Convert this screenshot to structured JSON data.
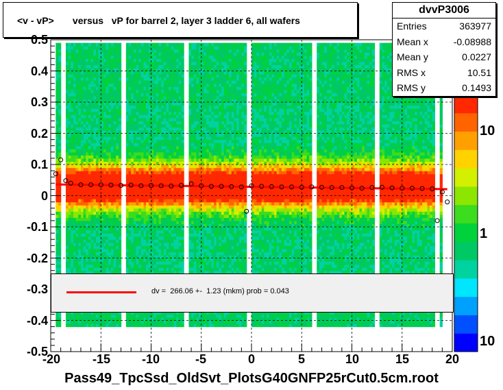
{
  "title": "<v - vP>       versus   vP for barrel 2, layer 3 ladder 6, all wafers",
  "stats": {
    "name": "dvvP3006",
    "rows": [
      {
        "label": "Entries",
        "value": "363977"
      },
      {
        "label": "Mean x",
        "value": "-0.08988"
      },
      {
        "label": "Mean y",
        "value": "0.0227"
      },
      {
        "label": "RMS x",
        "value": "10.51"
      },
      {
        "label": "RMS y",
        "value": "0.1493"
      }
    ]
  },
  "fit": {
    "text": "dv =  266.06 +-  1.23 (mkm) prob = 0.043",
    "color": "#ff0000"
  },
  "x_axis_title": "Pass49_TpcSsd_OldSvt_PlotsG40GNFP25rCut0.5cm.root",
  "chart_data": {
    "type": "heatmap",
    "xlim": [
      -20,
      20
    ],
    "ylim": [
      -0.5,
      0.5
    ],
    "x_ticks": [
      "-20",
      "-15",
      "-10",
      "-5",
      "0",
      "5",
      "10",
      "15",
      "20"
    ],
    "y_ticks": [
      "0.5",
      "0.4",
      "0.3",
      "0.2",
      "0.1",
      "0",
      "-0.1",
      "-0.2",
      "-0.3",
      "-0.4",
      "-0.5"
    ],
    "z_ticks": [
      "10",
      "1",
      "10"
    ],
    "z_scale": "log",
    "grid": true,
    "fit_line": {
      "x": [
        -19.5,
        19.5
      ],
      "y": [
        0.036,
        0.021
      ]
    },
    "profile_points": {
      "x": [
        -19.5,
        -19,
        -18.5,
        -18,
        -17,
        -16,
        -15,
        -14,
        -13,
        -12,
        -11,
        -10,
        -9,
        -8,
        -7,
        -6,
        -5,
        -4,
        -3,
        -2,
        -1,
        -0.5,
        0,
        1,
        2,
        3,
        4,
        5,
        6,
        7,
        8,
        9,
        10,
        11,
        12,
        13,
        14,
        15,
        16,
        17,
        18,
        18.5,
        19,
        19.5
      ],
      "y": [
        0.07,
        0.115,
        0.048,
        0.04,
        0.035,
        0.035,
        0.035,
        0.034,
        0.033,
        0.034,
        0.032,
        0.033,
        0.032,
        0.031,
        0.033,
        0.038,
        0.032,
        0.03,
        0.03,
        0.029,
        0.028,
        -0.05,
        0.032,
        0.03,
        0.029,
        0.028,
        0.028,
        0.027,
        0.028,
        0.027,
        0.026,
        0.026,
        0.025,
        0.024,
        0.026,
        0.027,
        0.025,
        0.024,
        0.024,
        0.023,
        0.022,
        -0.08,
        0.012,
        -0.02
      ]
    },
    "empty_columns_x": [
      -18.8,
      -12.8,
      -6.5,
      -0.3,
      6.3,
      12.5,
      18.5
    ]
  }
}
